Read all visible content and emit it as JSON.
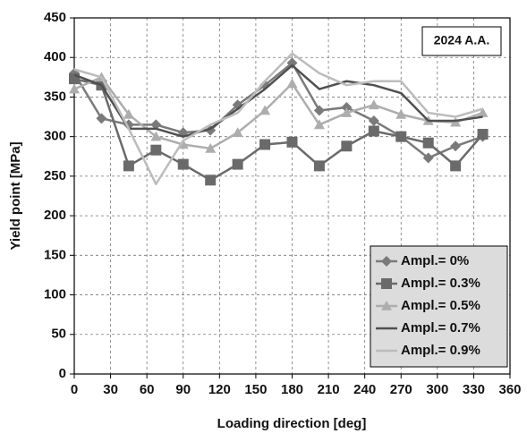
{
  "chart_data": {
    "type": "line",
    "annotation": "2024 A.A.",
    "x_label": "Loading direction [deg]",
    "y_label": "Yield point [MPa]",
    "x": [
      0,
      22.5,
      45,
      67.5,
      90,
      112.5,
      135,
      157.5,
      180,
      202.5,
      225,
      247.5,
      270,
      292.5,
      315,
      337.5
    ],
    "series": [
      {
        "name": "Ampl.= 0%",
        "color": "#7a7a7a",
        "marker": "diamond",
        "values": [
          380,
          323,
          315,
          315,
          305,
          308,
          340,
          365,
          393,
          333,
          337,
          320,
          300,
          273,
          288,
          300
        ]
      },
      {
        "name": "Ampl.= 0.3%",
        "color": "#6a6a6a",
        "marker": "square",
        "values": [
          373,
          365,
          263,
          283,
          265,
          245,
          265,
          290,
          293,
          263,
          288,
          307,
          300,
          292,
          263,
          303
        ]
      },
      {
        "name": "Ampl.= 0.5%",
        "color": "#adadad",
        "marker": "triangle",
        "values": [
          360,
          375,
          328,
          300,
          290,
          285,
          305,
          333,
          367,
          315,
          330,
          340,
          328,
          320,
          318,
          330
        ]
      },
      {
        "name": "Ampl.= 0.7%",
        "color": "#505050",
        "marker": "none",
        "values": [
          378,
          365,
          310,
          310,
          300,
          310,
          335,
          360,
          390,
          360,
          370,
          365,
          355,
          320,
          320,
          325
        ]
      },
      {
        "name": "Ampl.= 0.9%",
        "color": "#bcbcbc",
        "marker": "none",
        "values": [
          385,
          375,
          310,
          240,
          295,
          315,
          330,
          370,
          405,
          380,
          365,
          370,
          370,
          330,
          325,
          335
        ]
      }
    ],
    "xlim": [
      0,
      360
    ],
    "xticks": [
      0,
      30,
      60,
      90,
      120,
      150,
      180,
      210,
      240,
      270,
      300,
      330,
      360
    ],
    "ylim": [
      0,
      450
    ],
    "yticks": [
      0,
      50,
      100,
      150,
      200,
      250,
      300,
      350,
      400,
      450
    ],
    "grid": true,
    "legend": "lower right"
  }
}
